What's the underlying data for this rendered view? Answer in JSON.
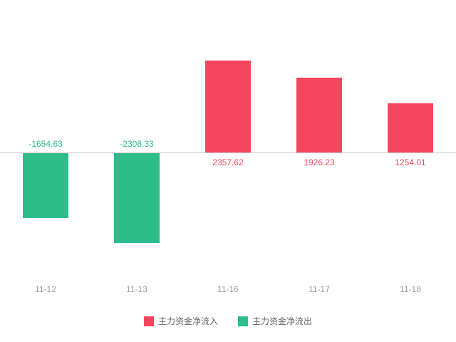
{
  "chart_data": {
    "type": "bar",
    "title": "",
    "xlabel": "",
    "ylabel": "",
    "categories": [
      "11-12",
      "11-13",
      "11-16",
      "11-17",
      "11-18"
    ],
    "values": [
      -1654.63,
      -2308.33,
      2357.62,
      1926.23,
      1254.01
    ],
    "value_labels": [
      "-1654.63",
      "-2308.33",
      "2357.62",
      "1926.23",
      "1254.01"
    ],
    "ylim": [
      -2500,
      2500
    ],
    "grid": false,
    "legend_position": "bottom",
    "colors": {
      "positive": "#f6465d",
      "negative": "#2dbd8a",
      "axis_line": "#cccccc",
      "tick_label": "#999999",
      "legend_text": "#666666"
    },
    "legend": [
      {
        "label": "主力资金净流入",
        "color": "#f6465d"
      },
      {
        "label": "主力资金净流出",
        "color": "#2dbd8a"
      }
    ]
  }
}
